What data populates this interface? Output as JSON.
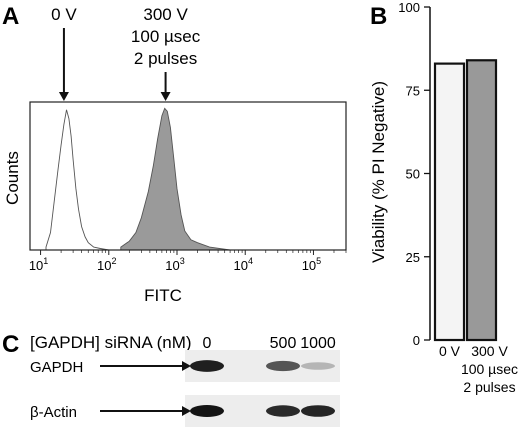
{
  "panels": {
    "a": {
      "letter": "A",
      "chart_data": {
        "type": "area",
        "xscale": "log",
        "xlim": [
          7,
          300000
        ],
        "xlabel": "FITC",
        "ylabel": "Counts",
        "xticks": [
          {
            "base": "10",
            "exp": "1",
            "value": 10
          },
          {
            "base": "10",
            "exp": "2",
            "value": 100
          },
          {
            "base": "10",
            "exp": "3",
            "value": 1000
          },
          {
            "base": "10",
            "exp": "4",
            "value": 10000
          },
          {
            "base": "10",
            "exp": "5",
            "value": 100000
          }
        ],
        "series": [
          {
            "fill": "#ffffff",
            "x": [
              12,
              14,
              16,
              18,
              20,
              22,
              24,
              26,
              28,
              30,
              33,
              36,
              40,
              45,
              50,
              60,
              75,
              100
            ],
            "y": [
              0.02,
              0.12,
              0.35,
              0.55,
              0.72,
              0.86,
              0.96,
              0.9,
              0.78,
              0.62,
              0.42,
              0.28,
              0.16,
              0.09,
              0.05,
              0.02,
              0.01,
              0.0
            ]
          },
          {
            "fill": "#9a9a9a",
            "x": [
              150,
              200,
              250,
              300,
              380,
              450,
              520,
              600,
              660,
              720,
              800,
              900,
              1000,
              1150,
              1300,
              1600,
              2000,
              3000,
              6000
            ],
            "y": [
              0.02,
              0.06,
              0.12,
              0.22,
              0.4,
              0.58,
              0.76,
              0.92,
              0.97,
              0.95,
              0.84,
              0.62,
              0.42,
              0.24,
              0.13,
              0.07,
              0.05,
              0.02,
              0.0
            ]
          }
        ],
        "annotations": [
          {
            "lines": [
              "0 V"
            ],
            "x": 22
          },
          {
            "lines": [
              "300 V",
              "100 µsec",
              "2 pulses"
            ],
            "x": 680
          }
        ]
      }
    },
    "b": {
      "letter": "B",
      "chart_data": {
        "type": "bar",
        "categories": [
          {
            "lines": [
              "0 V"
            ]
          },
          {
            "lines": [
              "300 V",
              "100 µsec",
              "2 pulses"
            ]
          }
        ],
        "values": [
          83,
          84
        ],
        "colors": [
          "#f4f4f4",
          "#999999"
        ],
        "ylim": [
          0,
          100
        ],
        "yticks": [
          0,
          25,
          50,
          75,
          100
        ],
        "ylabel": "Viability (% PI Negative)"
      }
    },
    "c": {
      "letter": "C",
      "header_label": "[GAPDH] siRNA (nM)",
      "concentrations": [
        "0",
        "500",
        "1000"
      ],
      "rows": [
        {
          "label": "GAPDH",
          "intensities": [
            0.95,
            0.0,
            0.7,
            0.25
          ]
        },
        {
          "label": "β-Actin",
          "intensities": [
            1.0,
            0.0,
            0.9,
            0.92
          ]
        }
      ]
    }
  }
}
